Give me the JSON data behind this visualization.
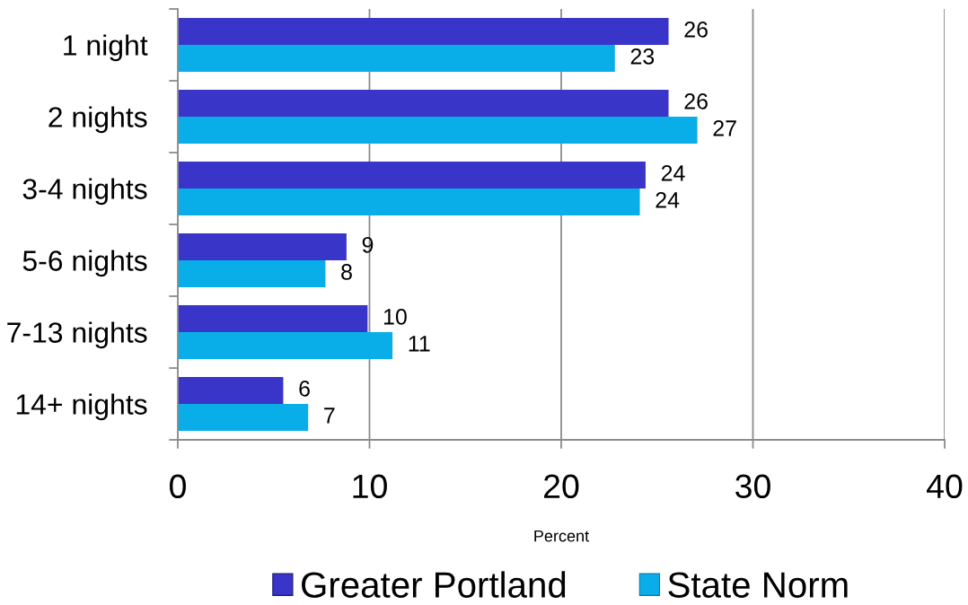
{
  "chart_data": {
    "type": "bar",
    "orientation": "horizontal",
    "categories": [
      "1 night",
      "2 nights",
      "3-4 nights",
      "5-6 nights",
      "7-13 nights",
      "14+ nights"
    ],
    "series": [
      {
        "name": "Greater Portland",
        "color": "#3935c8",
        "values": [
          25.6,
          25.6,
          24.4,
          8.8,
          9.9,
          5.5
        ],
        "value_labels": [
          "26",
          "26",
          "24",
          "9",
          "10",
          "6"
        ]
      },
      {
        "name": "State Norm",
        "color": "#09ade8",
        "values": [
          22.8,
          27.1,
          24.1,
          7.7,
          11.2,
          6.8
        ],
        "value_labels": [
          "23",
          "27",
          "24",
          "8",
          "11",
          "7"
        ]
      }
    ],
    "xlabel": "Percent",
    "xlim": [
      0,
      40
    ],
    "xticks": [
      0,
      10,
      20,
      30,
      40
    ],
    "grid": "x",
    "legend": "bottom"
  }
}
